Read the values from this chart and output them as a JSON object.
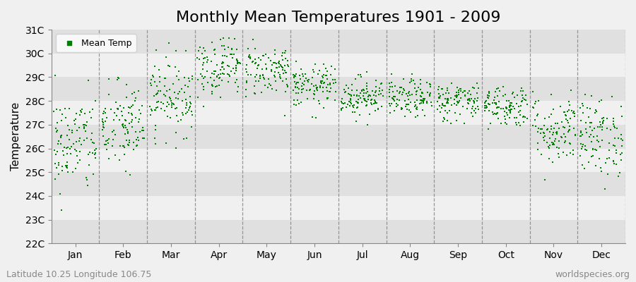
{
  "title": "Monthly Mean Temperatures 1901 - 2009",
  "ylabel": "Temperature",
  "ytick_labels": [
    "22C",
    "23C",
    "24C",
    "25C",
    "26C",
    "27C",
    "28C",
    "29C",
    "30C",
    "31C"
  ],
  "ytick_values": [
    22,
    23,
    24,
    25,
    26,
    27,
    28,
    29,
    30,
    31
  ],
  "ylim": [
    22,
    31
  ],
  "month_names": [
    "Jan",
    "Feb",
    "Mar",
    "Apr",
    "May",
    "Jun",
    "Jul",
    "Aug",
    "Sep",
    "Oct",
    "Nov",
    "Dec"
  ],
  "month_means": [
    26.2,
    26.9,
    28.2,
    29.5,
    29.3,
    28.6,
    28.2,
    28.1,
    28.0,
    27.8,
    26.8,
    26.5
  ],
  "month_stds": [
    1.05,
    0.95,
    0.8,
    0.65,
    0.55,
    0.45,
    0.42,
    0.4,
    0.42,
    0.45,
    0.75,
    0.85
  ],
  "n_years": 109,
  "marker_color": "#008000",
  "marker": "s",
  "marker_size": 4,
  "bg_outer": "#f0f0f0",
  "bg_band_light": "#f0f0f0",
  "bg_band_dark": "#e0e0e0",
  "legend_label": "Mean Temp",
  "footnote_left": "Latitude 10.25 Longitude 106.75",
  "footnote_right": "worldspecies.org",
  "title_fontsize": 16,
  "axis_fontsize": 11,
  "tick_fontsize": 10,
  "footnote_fontsize": 9,
  "legend_fontsize": 9,
  "seed": 42
}
